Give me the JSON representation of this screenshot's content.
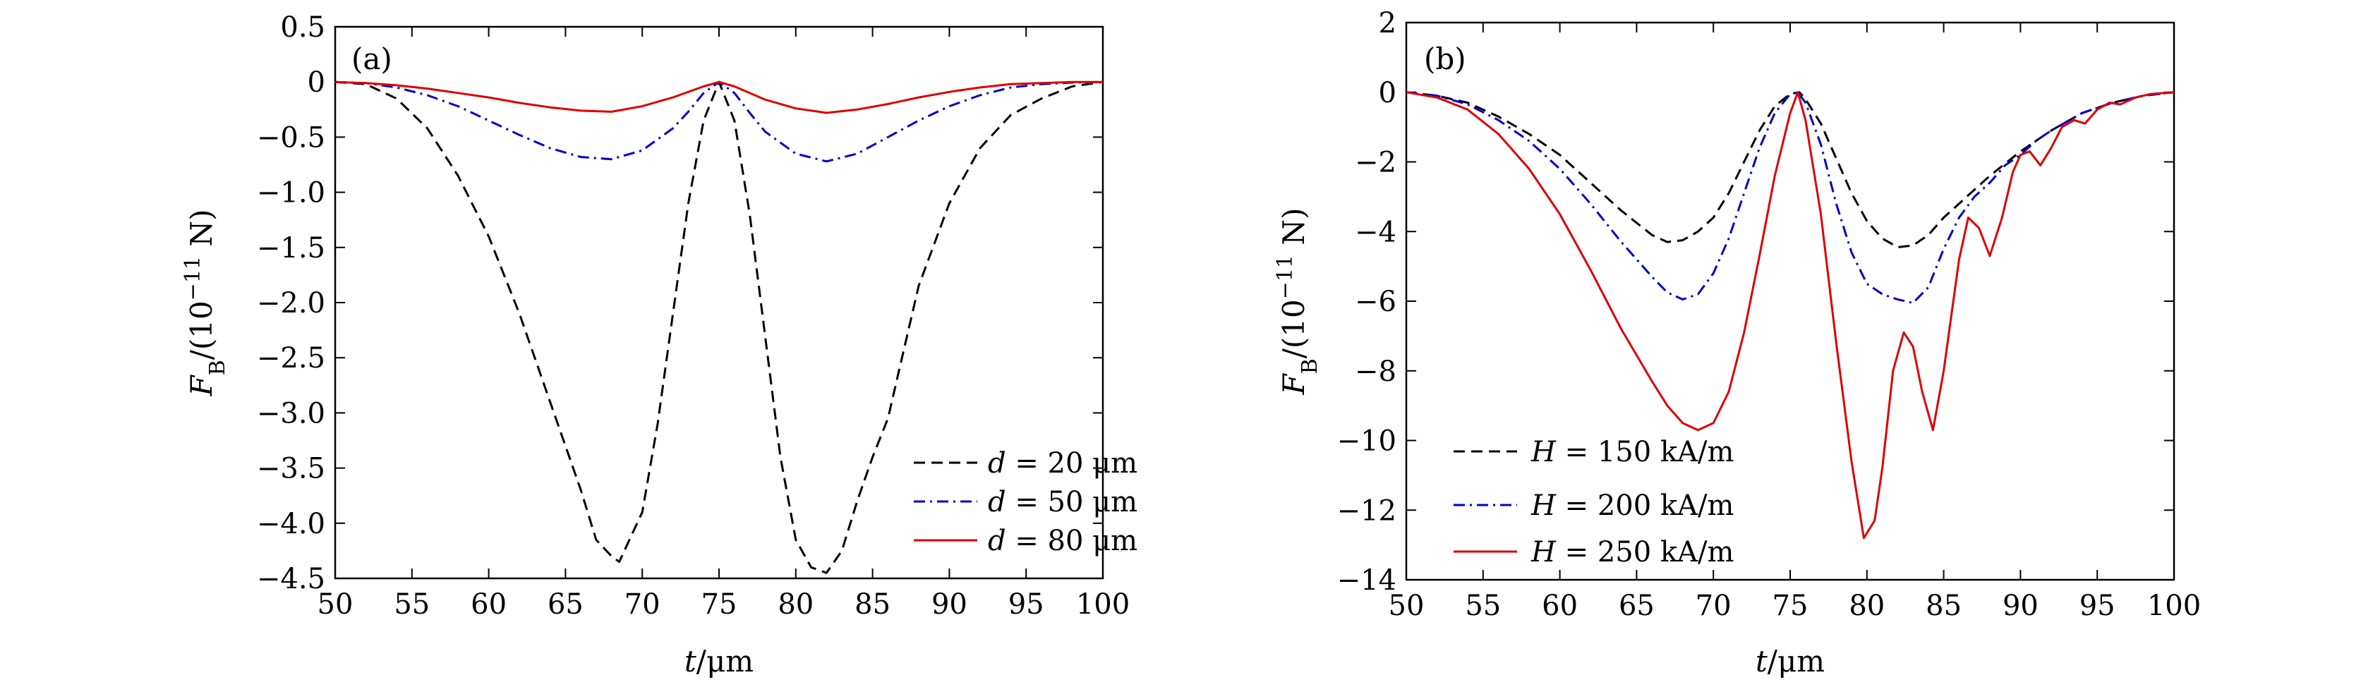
{
  "chart_data": [
    {
      "type": "line",
      "panel_label": "(a)",
      "xlabel_var": "t",
      "xlabel_unit": "/μm",
      "ylabel_var": "F",
      "ylabel_sub": "B",
      "ylabel_unit_pre": "/(10",
      "ylabel_unit_exp": "−11",
      "ylabel_unit_post": " N)",
      "xlim": [
        50,
        100
      ],
      "ylim": [
        -4.5,
        0.5
      ],
      "xticks": [
        "50",
        "55",
        "60",
        "65",
        "70",
        "75",
        "80",
        "85",
        "90",
        "95",
        "100"
      ],
      "xtick_values": [
        50,
        55,
        60,
        65,
        70,
        75,
        80,
        85,
        90,
        95,
        100
      ],
      "yticks": [
        "0.5",
        "0",
        "−0.5",
        "−1.0",
        "−1.5",
        "−2.0",
        "−2.5",
        "−3.0",
        "−3.5",
        "−4.0",
        "−4.5"
      ],
      "ytick_values": [
        0.5,
        0,
        -0.5,
        -1.0,
        -1.5,
        -2.0,
        -2.5,
        -3.0,
        -3.5,
        -4.0,
        -4.5
      ],
      "legend_position": "lower-right",
      "grid": false,
      "series": [
        {
          "name": "d = 20 μm",
          "legend_var": "d",
          "legend_rest": " = 20 μm",
          "color": "#000000",
          "dash": "dashed",
          "points": [
            [
              50,
              0
            ],
            [
              52,
              -0.02
            ],
            [
              54,
              -0.15
            ],
            [
              56,
              -0.42
            ],
            [
              58,
              -0.85
            ],
            [
              60,
              -1.4
            ],
            [
              62,
              -2.1
            ],
            [
              64,
              -2.9
            ],
            [
              66,
              -3.7
            ],
            [
              67,
              -4.15
            ],
            [
              68,
              -4.3
            ],
            [
              68.5,
              -4.35
            ],
            [
              69,
              -4.2
            ],
            [
              70,
              -3.9
            ],
            [
              71,
              -3.1
            ],
            [
              72,
              -2.1
            ],
            [
              73,
              -1.1
            ],
            [
              74,
              -0.35
            ],
            [
              75,
              0
            ],
            [
              76,
              -0.35
            ],
            [
              77,
              -1.2
            ],
            [
              78,
              -2.3
            ],
            [
              79,
              -3.4
            ],
            [
              80,
              -4.15
            ],
            [
              81,
              -4.4
            ],
            [
              82,
              -4.45
            ],
            [
              83,
              -4.25
            ],
            [
              84,
              -3.8
            ],
            [
              85,
              -3.4
            ],
            [
              86,
              -3.05
            ],
            [
              87,
              -2.45
            ],
            [
              88,
              -1.85
            ],
            [
              90,
              -1.1
            ],
            [
              92,
              -0.6
            ],
            [
              94,
              -0.3
            ],
            [
              96,
              -0.15
            ],
            [
              98,
              -0.04
            ],
            [
              100,
              0
            ]
          ]
        },
        {
          "name": "d = 50 μm",
          "legend_var": "d",
          "legend_rest": " = 50 μm",
          "color": "#0000cc",
          "dash": "dashdot",
          "points": [
            [
              50,
              0
            ],
            [
              52,
              -0.01
            ],
            [
              54,
              -0.05
            ],
            [
              56,
              -0.12
            ],
            [
              58,
              -0.22
            ],
            [
              60,
              -0.35
            ],
            [
              62,
              -0.48
            ],
            [
              64,
              -0.6
            ],
            [
              66,
              -0.68
            ],
            [
              68,
              -0.7
            ],
            [
              70,
              -0.62
            ],
            [
              72,
              -0.42
            ],
            [
              73,
              -0.27
            ],
            [
              74,
              -0.1
            ],
            [
              75,
              0
            ],
            [
              76,
              -0.1
            ],
            [
              77,
              -0.28
            ],
            [
              78,
              -0.45
            ],
            [
              80,
              -0.65
            ],
            [
              82,
              -0.72
            ],
            [
              84,
              -0.65
            ],
            [
              86,
              -0.5
            ],
            [
              88,
              -0.35
            ],
            [
              90,
              -0.22
            ],
            [
              92,
              -0.12
            ],
            [
              94,
              -0.05
            ],
            [
              96,
              -0.02
            ],
            [
              98,
              -0.005
            ],
            [
              100,
              0
            ]
          ]
        },
        {
          "name": "d = 80 μm",
          "legend_var": "d",
          "legend_rest": " = 80 μm",
          "color": "#dd0000",
          "dash": "solid",
          "points": [
            [
              50,
              0
            ],
            [
              52,
              -0.01
            ],
            [
              54,
              -0.03
            ],
            [
              56,
              -0.06
            ],
            [
              58,
              -0.1
            ],
            [
              60,
              -0.14
            ],
            [
              62,
              -0.19
            ],
            [
              64,
              -0.23
            ],
            [
              66,
              -0.26
            ],
            [
              68,
              -0.27
            ],
            [
              70,
              -0.22
            ],
            [
              72,
              -0.14
            ],
            [
              74,
              -0.04
            ],
            [
              75,
              0
            ],
            [
              76,
              -0.04
            ],
            [
              78,
              -0.16
            ],
            [
              80,
              -0.24
            ],
            [
              82,
              -0.28
            ],
            [
              84,
              -0.25
            ],
            [
              86,
              -0.2
            ],
            [
              88,
              -0.14
            ],
            [
              90,
              -0.09
            ],
            [
              92,
              -0.05
            ],
            [
              94,
              -0.02
            ],
            [
              96,
              -0.01
            ],
            [
              98,
              0
            ],
            [
              100,
              0
            ]
          ]
        }
      ]
    },
    {
      "type": "line",
      "panel_label": "(b)",
      "xlabel_var": "t",
      "xlabel_unit": "/μm",
      "ylabel_var": "F",
      "ylabel_sub": "B",
      "ylabel_unit_pre": "/(10",
      "ylabel_unit_exp": "−11",
      "ylabel_unit_post": " N)",
      "xlim": [
        50,
        100
      ],
      "ylim": [
        -14,
        2
      ],
      "xticks": [
        "50",
        "55",
        "60",
        "65",
        "70",
        "75",
        "80",
        "85",
        "90",
        "95",
        "100"
      ],
      "xtick_values": [
        50,
        55,
        60,
        65,
        70,
        75,
        80,
        85,
        90,
        95,
        100
      ],
      "yticks": [
        "2",
        "0",
        "−2",
        "−4",
        "−6",
        "−8",
        "−10",
        "−12",
        "−14"
      ],
      "ytick_values": [
        2,
        0,
        -2,
        -4,
        -6,
        -8,
        -10,
        -12,
        -14
      ],
      "legend_position": "lower-left",
      "grid": false,
      "series": [
        {
          "name": "H = 150 kA/m",
          "legend_var": "H",
          "legend_rest": " = 150 kA/m",
          "color": "#000000",
          "dash": "dashed",
          "points": [
            [
              50,
              0
            ],
            [
              52,
              -0.1
            ],
            [
              54,
              -0.3
            ],
            [
              56,
              -0.7
            ],
            [
              58,
              -1.2
            ],
            [
              60,
              -1.8
            ],
            [
              62,
              -2.6
            ],
            [
              64,
              -3.4
            ],
            [
              66,
              -4.1
            ],
            [
              67,
              -4.3
            ],
            [
              68,
              -4.25
            ],
            [
              69,
              -4.0
            ],
            [
              70,
              -3.6
            ],
            [
              71,
              -2.9
            ],
            [
              72,
              -2.0
            ],
            [
              73,
              -1.1
            ],
            [
              74,
              -0.4
            ],
            [
              75,
              -0.05
            ],
            [
              75.6,
              0
            ],
            [
              76,
              -0.2
            ],
            [
              77,
              -0.9
            ],
            [
              78,
              -1.9
            ],
            [
              79,
              -2.9
            ],
            [
              80,
              -3.7
            ],
            [
              81,
              -4.2
            ],
            [
              82,
              -4.45
            ],
            [
              83,
              -4.4
            ],
            [
              84,
              -4.1
            ],
            [
              85,
              -3.6
            ],
            [
              86,
              -3.2
            ],
            [
              87,
              -2.8
            ],
            [
              88,
              -2.4
            ],
            [
              90,
              -1.7
            ],
            [
              92,
              -1.1
            ],
            [
              94,
              -0.6
            ],
            [
              96,
              -0.3
            ],
            [
              98,
              -0.1
            ],
            [
              100,
              0
            ]
          ]
        },
        {
          "name": "H = 200 kA/m",
          "legend_var": "H",
          "legend_rest": " = 200 kA/m",
          "color": "#0000cc",
          "dash": "dashdot",
          "points": [
            [
              50,
              0
            ],
            [
              52,
              -0.1
            ],
            [
              54,
              -0.35
            ],
            [
              56,
              -0.8
            ],
            [
              58,
              -1.4
            ],
            [
              60,
              -2.2
            ],
            [
              62,
              -3.2
            ],
            [
              64,
              -4.3
            ],
            [
              66,
              -5.3
            ],
            [
              67,
              -5.75
            ],
            [
              68,
              -5.95
            ],
            [
              69,
              -5.8
            ],
            [
              70,
              -5.2
            ],
            [
              71,
              -4.2
            ],
            [
              72,
              -2.9
            ],
            [
              73,
              -1.6
            ],
            [
              74,
              -0.6
            ],
            [
              75,
              -0.05
            ],
            [
              75.5,
              0
            ],
            [
              76,
              -0.3
            ],
            [
              77,
              -1.5
            ],
            [
              78,
              -3.2
            ],
            [
              79,
              -4.6
            ],
            [
              80,
              -5.5
            ],
            [
              81,
              -5.8
            ],
            [
              82,
              -5.95
            ],
            [
              83,
              -6.05
            ],
            [
              84,
              -5.6
            ],
            [
              85,
              -4.5
            ],
            [
              86,
              -3.6
            ],
            [
              87,
              -3.0
            ],
            [
              88,
              -2.6
            ],
            [
              89,
              -2.1
            ],
            [
              90,
              -1.8
            ],
            [
              91,
              -1.4
            ],
            [
              92,
              -1.1
            ],
            [
              94,
              -0.6
            ],
            [
              96,
              -0.3
            ],
            [
              98,
              -0.1
            ],
            [
              100,
              0
            ]
          ]
        },
        {
          "name": "H = 250 kA/m",
          "legend_var": "H",
          "legend_rest": " = 250 kA/m",
          "color": "#dd0000",
          "dash": "solid",
          "points": [
            [
              50,
              0
            ],
            [
              52,
              -0.15
            ],
            [
              54,
              -0.5
            ],
            [
              56,
              -1.2
            ],
            [
              58,
              -2.2
            ],
            [
              60,
              -3.5
            ],
            [
              62,
              -5.1
            ],
            [
              64,
              -6.8
            ],
            [
              66,
              -8.3
            ],
            [
              67,
              -9.0
            ],
            [
              68,
              -9.5
            ],
            [
              69,
              -9.7
            ],
            [
              70,
              -9.5
            ],
            [
              71,
              -8.6
            ],
            [
              72,
              -6.9
            ],
            [
              73,
              -4.7
            ],
            [
              74,
              -2.4
            ],
            [
              75,
              -0.6
            ],
            [
              75.5,
              0
            ],
            [
              76,
              -0.8
            ],
            [
              77,
              -3.5
            ],
            [
              78,
              -7.2
            ],
            [
              79,
              -10.6
            ],
            [
              79.8,
              -12.8
            ],
            [
              80.5,
              -12.3
            ],
            [
              81,
              -10.8
            ],
            [
              81.7,
              -8.0
            ],
            [
              82.4,
              -6.9
            ],
            [
              83,
              -7.3
            ],
            [
              83.6,
              -8.6
            ],
            [
              84.3,
              -9.7
            ],
            [
              85,
              -8.0
            ],
            [
              86,
              -4.8
            ],
            [
              86.6,
              -3.6
            ],
            [
              87.3,
              -3.9
            ],
            [
              88,
              -4.7
            ],
            [
              88.8,
              -3.6
            ],
            [
              89.5,
              -2.3
            ],
            [
              90,
              -1.8
            ],
            [
              90.6,
              -1.7
            ],
            [
              91.3,
              -2.1
            ],
            [
              92,
              -1.6
            ],
            [
              92.7,
              -1.0
            ],
            [
              93.5,
              -0.8
            ],
            [
              94.2,
              -0.9
            ],
            [
              95,
              -0.5
            ],
            [
              95.8,
              -0.3
            ],
            [
              96.5,
              -0.35
            ],
            [
              97.5,
              -0.15
            ],
            [
              98.5,
              -0.05
            ],
            [
              100,
              0
            ]
          ]
        }
      ]
    }
  ]
}
